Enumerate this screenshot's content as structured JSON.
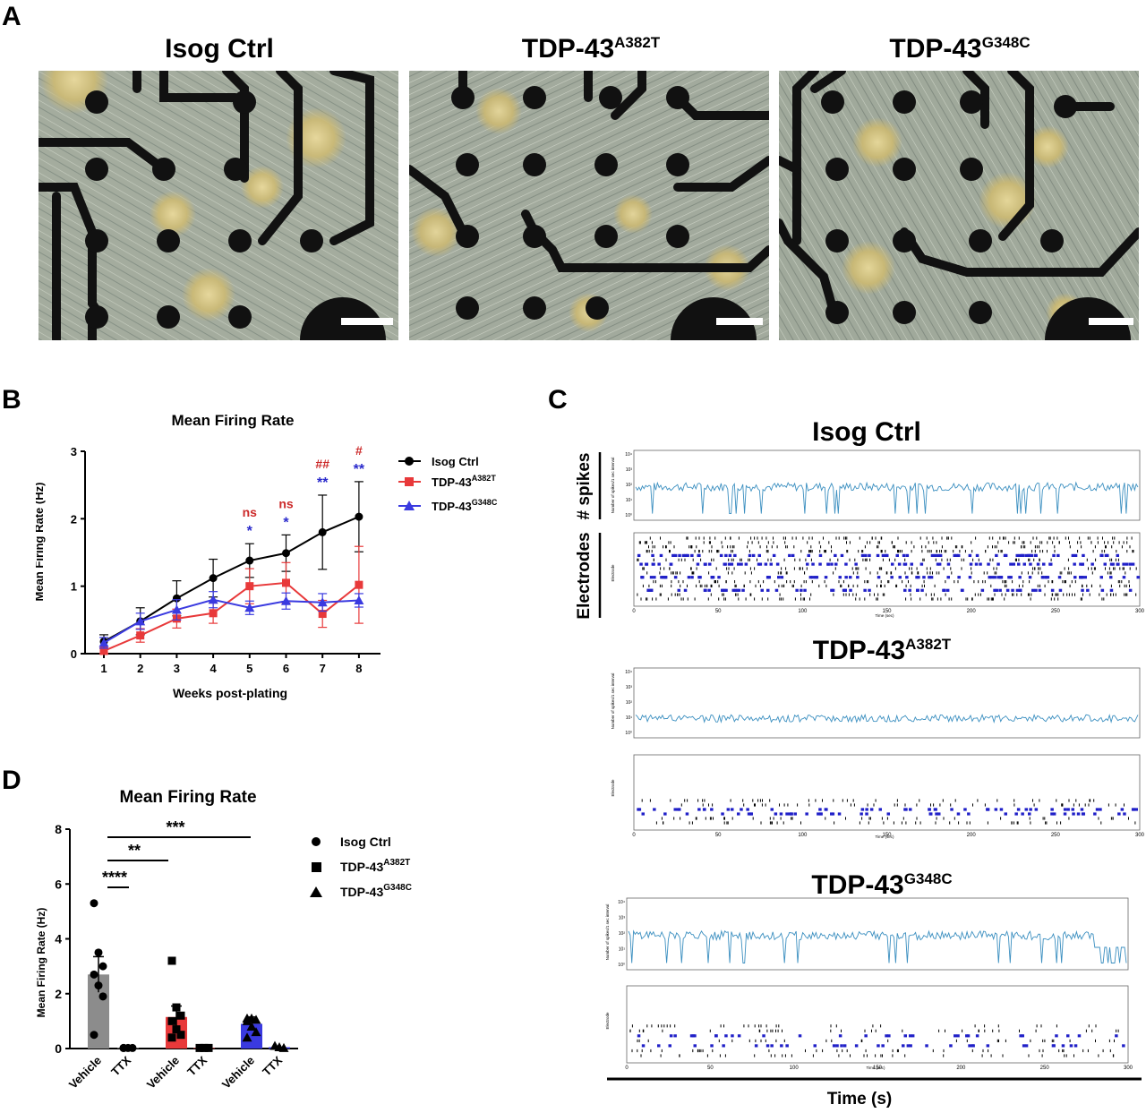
{
  "panel_a": {
    "letter": "A",
    "images": [
      {
        "title": "Isog Ctrl",
        "sup": ""
      },
      {
        "title": "TDP-43",
        "sup": "A382T"
      },
      {
        "title": "TDP-43",
        "sup": "G348C"
      }
    ]
  },
  "panel_b": {
    "letter": "B",
    "title": "Mean Firing Rate",
    "xlabel": "Weeks post-plating",
    "ylabel": "Mean Firing Rate (Hz)",
    "legend": [
      {
        "name": "Isog Ctrl",
        "sup": ""
      },
      {
        "name": "TDP-43",
        "sup": "A382T"
      },
      {
        "name": "TDP-43",
        "sup": "G348C"
      }
    ],
    "annotations": [
      {
        "week": 5,
        "red": "ns",
        "blue": "*"
      },
      {
        "week": 6,
        "red": "ns",
        "blue": "*"
      },
      {
        "week": 7,
        "red": "##",
        "blue": "**"
      },
      {
        "week": 8,
        "red": "#",
        "blue": "**"
      }
    ]
  },
  "panel_c": {
    "letter": "C",
    "y_side_top": "# spikes",
    "y_side_bottom": "Electrodes",
    "xlabel": "Time (s)",
    "groups": [
      {
        "title": "Isog Ctrl",
        "sup": "",
        "spike_ylabel": "Number of spikes/1 sec interval",
        "raster_ylabel": "Electrode",
        "raster_xlabel": "Time (sec)"
      },
      {
        "title": "TDP-43",
        "sup": "A382T",
        "spike_ylabel": "Number of spikes/1 sec interval",
        "raster_ylabel": "Electrode",
        "raster_xlabel": "Time (sec)"
      },
      {
        "title": "TDP-43",
        "sup": "G348C",
        "spike_ylabel": "Number of spikes/1 sec interval",
        "raster_ylabel": "Electrode",
        "raster_xlabel": "Time (sec)"
      }
    ],
    "time_ticks": [
      "0",
      "50",
      "100",
      "150",
      "200",
      "250",
      "300"
    ],
    "spike_ticks": [
      "10⁰",
      "10¹",
      "10²",
      "10³",
      "10⁴"
    ]
  },
  "panel_d": {
    "letter": "D",
    "title": "Mean Firing Rate",
    "ylabel": "Mean Firing Rate (Hz)",
    "legend": [
      {
        "name": "Isog Ctrl",
        "sup": "",
        "marker": "circle"
      },
      {
        "name": "TDP-43",
        "sup": "A382T",
        "marker": "square"
      },
      {
        "name": "TDP-43",
        "sup": "G348C",
        "marker": "triangle"
      }
    ],
    "significance": [
      "***",
      "**",
      "****"
    ]
  },
  "colors": {
    "ctrl": "#000000",
    "a382t": "#e8393a",
    "g348c": "#3a3ae0",
    "trace": "#3b8fc0",
    "raster_blue": "#2020c8",
    "ns_red": "#cc2a2a",
    "star_blue": "#2a2acc"
  },
  "chart_data": [
    {
      "type": "line",
      "title": "Mean Firing Rate",
      "xlabel": "Weeks post-plating",
      "ylabel": "Mean Firing Rate (Hz)",
      "x": [
        1,
        2,
        3,
        4,
        5,
        6,
        7,
        8
      ],
      "ylim": [
        0,
        3
      ],
      "yticks": [
        0,
        1,
        2,
        3
      ],
      "series": [
        {
          "name": "Isog Ctrl",
          "values": [
            0.18,
            0.48,
            0.82,
            1.12,
            1.38,
            1.49,
            1.8,
            2.03
          ],
          "errors": [
            0.1,
            0.2,
            0.26,
            0.28,
            0.25,
            0.27,
            0.55,
            0.52
          ],
          "color": "#000000",
          "marker": "circle"
        },
        {
          "name": "TDP-43 A382T",
          "values": [
            0.04,
            0.27,
            0.52,
            0.6,
            1.0,
            1.05,
            0.59,
            1.02
          ],
          "errors": [
            0.04,
            0.1,
            0.14,
            0.15,
            0.26,
            0.3,
            0.2,
            0.57
          ],
          "color": "#e8393a",
          "marker": "square"
        },
        {
          "name": "TDP-43 G348C",
          "values": [
            0.16,
            0.48,
            0.65,
            0.8,
            0.68,
            0.78,
            0.76,
            0.79
          ],
          "errors": [
            0.08,
            0.12,
            0.15,
            0.12,
            0.1,
            0.12,
            0.13,
            0.1
          ],
          "color": "#3a3ae0",
          "marker": "triangle"
        }
      ]
    },
    {
      "type": "bar",
      "title": "Mean Firing Rate",
      "ylabel": "Mean Firing Rate (Hz)",
      "ylim": [
        0,
        8
      ],
      "yticks": [
        0,
        2,
        4,
        6,
        8
      ],
      "categories": [
        "Vehicle",
        "TTX",
        "Vehicle",
        "TTX",
        "Vehicle",
        "TTX"
      ],
      "bars": [
        {
          "group": "Isog Ctrl",
          "condition": "Vehicle",
          "value": 2.7,
          "error": 0.65,
          "color": "#8c8c8c",
          "marker": "circle",
          "points": [
            5.3,
            3.5,
            3.0,
            2.7,
            2.3,
            1.9,
            0.5
          ]
        },
        {
          "group": "Isog Ctrl",
          "condition": "TTX",
          "value": 0.02,
          "error": 0.0,
          "color": "#8c8c8c",
          "marker": "circle",
          "points": [
            0.02,
            0.02,
            0.02,
            0.02
          ]
        },
        {
          "group": "TDP-43 A382T",
          "condition": "Vehicle",
          "value": 1.15,
          "error": 0.4,
          "color": "#e8393a",
          "marker": "square",
          "points": [
            3.2,
            1.5,
            1.2,
            1.0,
            0.7,
            0.5,
            0.4
          ]
        },
        {
          "group": "TDP-43 A382T",
          "condition": "TTX",
          "value": 0.02,
          "error": 0.0,
          "color": "#e8393a",
          "marker": "square",
          "points": [
            0.02,
            0.02,
            0.02
          ]
        },
        {
          "group": "TDP-43 G348C",
          "condition": "Vehicle",
          "value": 0.9,
          "error": 0.25,
          "color": "#3a3ae0",
          "marker": "triangle",
          "points": [
            1.1,
            1.1,
            1.05,
            1.0,
            0.8,
            0.6,
            0.4
          ]
        },
        {
          "group": "TDP-43 G348C",
          "condition": "TTX",
          "value": 0.05,
          "error": 0.0,
          "color": "#3a3ae0",
          "marker": "triangle",
          "points": [
            0.1,
            0.05,
            0.02
          ]
        }
      ]
    }
  ]
}
